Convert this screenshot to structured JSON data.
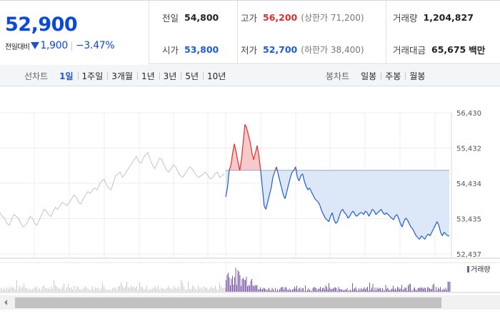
{
  "quote": {
    "current_price": "52,900",
    "change_caption": "전일대비",
    "change_amount": "1,900",
    "change_rate": "−3.47%",
    "change_direction_icon": "down-triangle-icon"
  },
  "stats": {
    "prev_close": {
      "label": "전일",
      "value": "54,800"
    },
    "open": {
      "label": "시가",
      "value": "53,800"
    },
    "high": {
      "label": "고가",
      "value": "56,200",
      "limit": "(상한가 71,200)"
    },
    "low": {
      "label": "저가",
      "value": "52,700",
      "limit": "(하한가 38,400)"
    },
    "volume": {
      "label": "거래량",
      "value": "1,204,827"
    },
    "trade_value": {
      "label": "거래대금",
      "value": "65,675",
      "unit": "백만"
    }
  },
  "tabs": {
    "line_caption": "선차트",
    "line_periods": [
      "1일",
      "1주일",
      "3개월",
      "1년",
      "3년",
      "5년",
      "10년"
    ],
    "line_active_index": 0,
    "candle_caption": "봉차트",
    "candle_periods": [
      "일봉",
      "주봉",
      "월봉"
    ]
  },
  "colors": {
    "price_blue": "#0b49d9",
    "rise_red": "#e22d2d",
    "fall_blue": "#1e5bd6",
    "fill_blue": "#dce8f8",
    "prev_day_gray": "#c4c4c4",
    "volume_purple": "#7b5aa6"
  },
  "chart_data": {
    "type": "line",
    "ytick_labels": [
      "56,430",
      "55,432",
      "54,434",
      "53,435",
      "52,437"
    ],
    "ylim": [
      52437,
      56430
    ],
    "reference_price": 54800,
    "series": [
      {
        "values": [
          53600,
          53500,
          53450,
          53300,
          53250,
          53400,
          53550,
          53500,
          53450,
          53300,
          53200,
          53250,
          53350,
          53500,
          53450,
          53300,
          53250,
          53400,
          53550,
          53700,
          53650,
          53550,
          53500,
          53650,
          53750,
          53700,
          53800,
          53900,
          53850,
          53800,
          53900,
          54000,
          54100,
          54050,
          53900,
          53850,
          54000,
          54100,
          54200,
          54150,
          54250,
          54300,
          54250,
          54400,
          54500,
          54550,
          54400,
          54300,
          54250,
          54450,
          54650,
          54700,
          54750,
          54600,
          54700,
          54800,
          54900,
          55000,
          55100,
          55200,
          55050,
          55000,
          55150,
          55250,
          55300,
          55100,
          54950,
          54850,
          55000,
          55150,
          55100,
          54950,
          54800,
          54750,
          54850,
          54950,
          54900,
          54750,
          54650,
          54600,
          54700,
          54800,
          54900,
          54850,
          54750,
          54650,
          54600,
          54650,
          54700,
          54750,
          54650,
          54550,
          54600,
          54700,
          54750,
          54600,
          54650,
          54700
        ]
      },
      {
        "values": [
          54050,
          54300,
          54800,
          54950,
          55300,
          55550,
          55300,
          55050,
          54800,
          55100,
          55600,
          56100,
          56000,
          55800,
          55600,
          55300,
          55100,
          55300,
          55500,
          55200,
          54800,
          54300,
          53800,
          53700,
          53900,
          54100,
          54300,
          54600,
          54750,
          54900,
          54700,
          54500,
          54300,
          54100,
          54000,
          54200,
          54400,
          54600,
          54750,
          54800,
          54900,
          54600,
          54500,
          54650,
          54700,
          54500,
          54350,
          54250,
          54300,
          54200,
          54100,
          54000,
          53950,
          53900,
          53800,
          53650,
          53550,
          53450,
          53400,
          53350,
          53500,
          53600,
          53400,
          53300,
          53350,
          53500,
          53650,
          53700,
          53600,
          53550,
          53450,
          53500,
          53600,
          53650,
          53550,
          53500,
          53550,
          53600,
          53600,
          53550,
          53650,
          53600,
          53500,
          53600,
          53700,
          53650,
          53550,
          53600,
          53650,
          53700,
          53600,
          53550,
          53600,
          53550,
          53500,
          53450,
          53400,
          53500,
          53550,
          53450,
          53300,
          53200,
          53350,
          53450,
          53400,
          53300,
          53200,
          53150,
          53050,
          52950,
          52900,
          52850,
          52950,
          52900,
          52850,
          52950,
          53000,
          52950,
          53050,
          53150,
          53250,
          53350,
          53250,
          53050,
          52950,
          53050,
          53000,
          52950,
          52950
        ]
      }
    ],
    "volume_legend": "거래량"
  }
}
